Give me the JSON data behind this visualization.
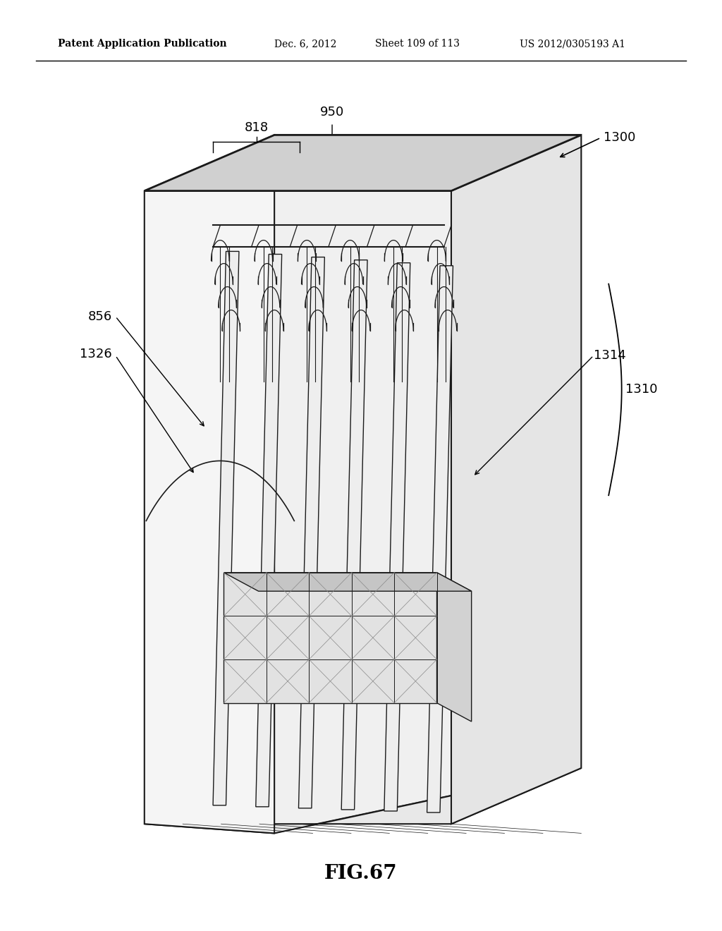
{
  "background_color": "#ffffff",
  "header_text": "Patent Application Publication",
  "header_date": "Dec. 6, 2012",
  "header_sheet": "Sheet 109 of 113",
  "header_patent": "US 2012/0305193 A1",
  "fig_label": "FIG.67",
  "label_fontsize": 13,
  "header_fontsize": 10,
  "dark_line": "#1a1a1a"
}
